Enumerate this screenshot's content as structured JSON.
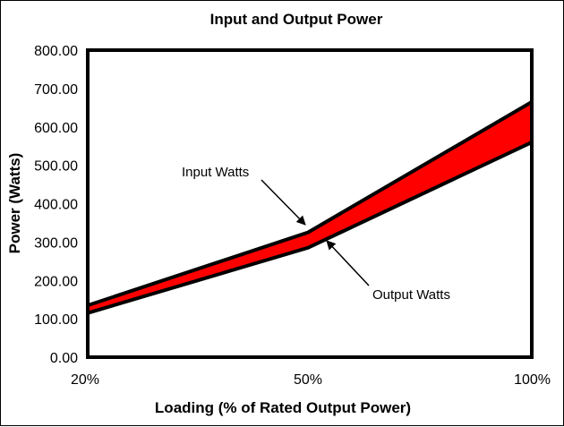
{
  "chart_data": {
    "type": "area",
    "title": "Input and Output Power",
    "xlabel": "Loading (% of Rated Output Power)",
    "ylabel": "Power (Watts)",
    "categories": [
      "20%",
      "50%",
      "100%"
    ],
    "ylim": [
      0,
      800
    ],
    "ytick_labels": [
      "0.00",
      "100.00",
      "200.00",
      "300.00",
      "400.00",
      "500.00",
      "600.00",
      "700.00",
      "800.00"
    ],
    "series": [
      {
        "name": "Input Watts",
        "values": [
          135,
          325,
          665
        ]
      },
      {
        "name": "Output Watts",
        "values": [
          115,
          285,
          560
        ]
      }
    ],
    "fill_color": "#ff0000",
    "line_color": "#000000",
    "grid": false,
    "annotations": [
      {
        "text": "Input Watts",
        "target_series": "Input Watts",
        "target_category": "50%"
      },
      {
        "text": "Output Watts",
        "target_series": "Output Watts",
        "target_category": "50%"
      }
    ]
  }
}
